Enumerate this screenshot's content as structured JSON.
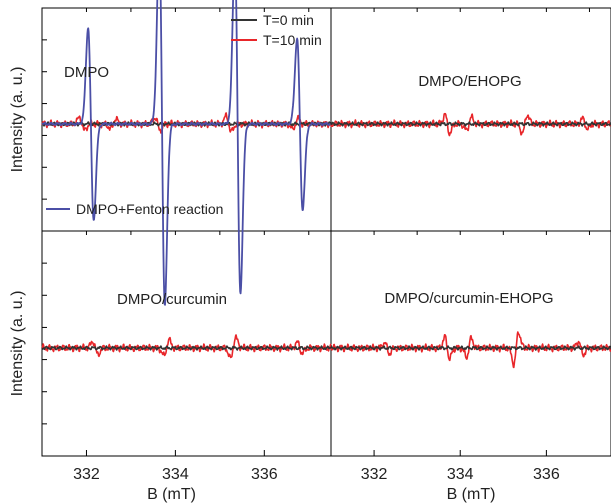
{
  "chart_data": {
    "type": "line",
    "layout": "2x2 grid of panels sharing the x axis",
    "xlabel": "B (mT)",
    "ylabel": "Intensity (a. u.)",
    "xlim": [
      331,
      337.5
    ],
    "ylim": [
      -1.3,
      1.3
    ],
    "x_ticks": [
      332,
      334,
      336
    ],
    "y_ticks_shown": true,
    "y_tick_labels_shown": false,
    "legend_placement": "top-right of upper-left panel",
    "series_styles": [
      {
        "name": "T=0 min",
        "color": "#333333"
      },
      {
        "name": "T=10 min",
        "color": "#e8262a"
      },
      {
        "name": "DMPO+Fenton reaction",
        "color": "#4b4fa6"
      }
    ],
    "panels": [
      {
        "id": "top-left",
        "label": "DMPO",
        "series": [
          {
            "name": "DMPO+Fenton reaction",
            "type": "epr_quartet",
            "centers": [
              332.1,
              333.7,
              335.4,
              336.8
            ],
            "amplitudes": [
              0.72,
              1.36,
              1.27,
              0.64
            ],
            "linewidth": 0.09
          },
          {
            "name": "T=0 min",
            "type": "baseline",
            "noise": 0.015
          },
          {
            "name": "T=10 min",
            "type": "baseline",
            "noise": 0.03,
            "bumps": [
              {
                "x": 331.9,
                "a": 0.05
              },
              {
                "x": 332.6,
                "a": -0.04
              },
              {
                "x": 333.6,
                "a": 0.05
              },
              {
                "x": 335.2,
                "a": 0.06
              },
              {
                "x": 336.7,
                "a": -0.04
              }
            ]
          }
        ]
      },
      {
        "id": "top-right",
        "label": "DMPO/EHOPG",
        "series": [
          {
            "name": "T=0 min",
            "type": "baseline",
            "noise": 0.015
          },
          {
            "name": "T=10 min",
            "type": "baseline",
            "noise": 0.03,
            "bumps": [
              {
                "x": 333.7,
                "a": 0.07
              },
              {
                "x": 334.2,
                "a": -0.05
              },
              {
                "x": 335.5,
                "a": -0.07
              },
              {
                "x": 336.9,
                "a": 0.04
              }
            ]
          }
        ]
      },
      {
        "id": "bottom-left",
        "label": "DMPO/curcumin",
        "series": [
          {
            "name": "T=0 min",
            "type": "baseline",
            "noise": 0.015
          },
          {
            "name": "T=10 min",
            "type": "baseline",
            "noise": 0.03,
            "bumps": [
              {
                "x": 332.2,
                "a": 0.05
              },
              {
                "x": 333.8,
                "a": -0.06
              },
              {
                "x": 335.3,
                "a": -0.08
              },
              {
                "x": 336.8,
                "a": 0.04
              }
            ]
          }
        ]
      },
      {
        "id": "bottom-right",
        "label": "DMPO/curcumin-EHOPG",
        "series": [
          {
            "name": "T=0 min",
            "type": "baseline",
            "noise": 0.015
          },
          {
            "name": "T=10 min",
            "type": "baseline",
            "noise": 0.03,
            "bumps": [
              {
                "x": 332.3,
                "a": 0.04
              },
              {
                "x": 333.7,
                "a": 0.08
              },
              {
                "x": 334.2,
                "a": -0.07
              },
              {
                "x": 335.3,
                "a": -0.12
              },
              {
                "x": 336.8,
                "a": 0.05
              }
            ]
          }
        ]
      }
    ]
  }
}
